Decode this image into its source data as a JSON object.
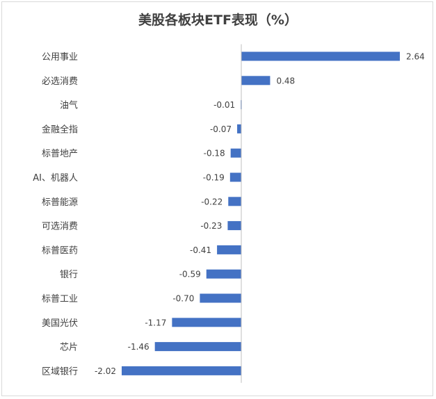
{
  "chart_data": {
    "type": "bar",
    "orientation": "horizontal",
    "title": "美股各板块ETF表现（%）",
    "categories": [
      "公用事业",
      "必选消费",
      "油气",
      "金融全指",
      "标普地产",
      "AI、机器人",
      "标普能源",
      "可选消费",
      "标普医药",
      "银行",
      "标普工业",
      "美国光伏",
      "芯片",
      "区域银行"
    ],
    "values": [
      2.64,
      0.48,
      -0.01,
      -0.07,
      -0.18,
      -0.19,
      -0.22,
      -0.23,
      -0.41,
      -0.59,
      -0.7,
      -1.17,
      -1.46,
      -2.02
    ],
    "value_labels": [
      "2.64",
      "0.48",
      "-0.01",
      "-0.07",
      "-0.18",
      "-0.19",
      "-0.22",
      "-0.23",
      "-0.41",
      "-0.59",
      "-0.70",
      "-1.17",
      "-1.46",
      "-2.02"
    ],
    "xlim": [
      -2.02,
      2.64
    ],
    "grid": false,
    "legend": "none",
    "bar_color": "#4472c4",
    "axis_color": "#bfbfbf"
  }
}
